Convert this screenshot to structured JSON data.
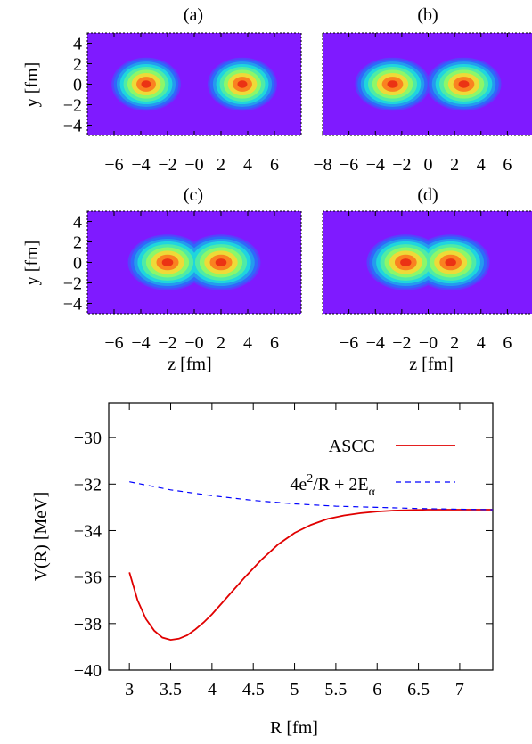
{
  "chart_data": [
    {
      "type": "heatmap",
      "panel_label": "(a)",
      "xlabel": "",
      "ylabel": "y [fm]",
      "xlim": [
        -8,
        8
      ],
      "ylim": [
        -5,
        5
      ],
      "x_ticks": [
        "−6",
        "−4",
        "−2",
        "−0",
        "2",
        "4",
        "6"
      ],
      "x_tick_values": [
        -6,
        -4,
        -2,
        0,
        2,
        4,
        6
      ],
      "y_ticks": [
        "4",
        "2",
        "0",
        "−2",
        "−4"
      ],
      "y_tick_values": [
        4,
        2,
        0,
        -2,
        -4
      ],
      "blobs": [
        {
          "z": -3.6,
          "y": 0,
          "sz": 1.05,
          "sy": 1.05
        },
        {
          "z": 3.6,
          "y": 0,
          "sz": 1.05,
          "sy": 1.05
        }
      ]
    },
    {
      "type": "heatmap",
      "panel_label": "(b)",
      "xlabel": "",
      "ylabel": "",
      "xlim": [
        -8,
        8
      ],
      "ylim": [
        -5,
        5
      ],
      "x_ticks": [
        "−8",
        "−6",
        "−4",
        "−2",
        "0",
        "2",
        "4",
        "6"
      ],
      "x_tick_values": [
        -8,
        -6,
        -4,
        -2,
        0,
        2,
        4,
        6
      ],
      "y_ticks": [],
      "y_tick_values": [],
      "blobs": [
        {
          "z": -2.7,
          "y": 0,
          "sz": 1.15,
          "sy": 1.05
        },
        {
          "z": 2.7,
          "y": 0,
          "sz": 1.15,
          "sy": 1.05
        }
      ]
    },
    {
      "type": "heatmap",
      "panel_label": "(c)",
      "xlabel": "z [fm]",
      "ylabel": "y [fm]",
      "xlim": [
        -8,
        8
      ],
      "ylim": [
        -5,
        5
      ],
      "x_ticks": [
        "−6",
        "−4",
        "−2",
        "−0",
        "2",
        "4",
        "6"
      ],
      "x_tick_values": [
        -6,
        -4,
        -2,
        0,
        2,
        4,
        6
      ],
      "y_ticks": [
        "4",
        "2",
        "0",
        "−2",
        "−4"
      ],
      "y_tick_values": [
        4,
        2,
        0,
        -2,
        -4
      ],
      "blobs": [
        {
          "z": -2.0,
          "y": 0,
          "sz": 1.2,
          "sy": 1.1
        },
        {
          "z": 2.0,
          "y": 0,
          "sz": 1.2,
          "sy": 1.1
        }
      ]
    },
    {
      "type": "heatmap",
      "panel_label": "(d)",
      "xlabel": "z [fm]",
      "ylabel": "",
      "xlim": [
        -8,
        8
      ],
      "ylim": [
        -5,
        5
      ],
      "x_ticks": [
        "−6",
        "−4",
        "−2",
        "−0",
        "2",
        "4",
        "6"
      ],
      "x_tick_values": [
        -6,
        -4,
        -2,
        0,
        2,
        4,
        6
      ],
      "y_ticks": [],
      "y_tick_values": [],
      "blobs": [
        {
          "z": -1.7,
          "y": 0,
          "sz": 1.2,
          "sy": 1.1
        },
        {
          "z": 1.7,
          "y": 0,
          "sz": 1.2,
          "sy": 1.1
        }
      ]
    },
    {
      "type": "line",
      "xlabel": "R [fm]",
      "ylabel": "V(R) [MeV]",
      "xlim": [
        2.75,
        7.4
      ],
      "ylim": [
        -40,
        -28.5
      ],
      "x_ticks": [
        "3",
        "3.5",
        "4",
        "4.5",
        "5",
        "5.5",
        "6",
        "6.5",
        "7"
      ],
      "x_tick_values": [
        3,
        3.5,
        4,
        4.5,
        5,
        5.5,
        6,
        6.5,
        7
      ],
      "y_ticks": [
        "−30",
        "−32",
        "−34",
        "−36",
        "−38",
        "−40"
      ],
      "y_tick_values": [
        -30,
        -32,
        -34,
        -36,
        -38,
        -40
      ],
      "legend_position": "top-right",
      "series": [
        {
          "name": "ASCC",
          "color": "#e00000",
          "dash": "solid",
          "x": [
            3.0,
            3.1,
            3.2,
            3.3,
            3.4,
            3.5,
            3.6,
            3.7,
            3.8,
            3.9,
            4.0,
            4.2,
            4.4,
            4.6,
            4.8,
            5.0,
            5.2,
            5.4,
            5.6,
            5.8,
            6.0,
            6.2,
            6.4,
            6.6,
            6.8,
            7.0,
            7.2,
            7.4
          ],
          "y": [
            -35.8,
            -37.0,
            -37.8,
            -38.3,
            -38.6,
            -38.7,
            -38.65,
            -38.5,
            -38.25,
            -37.95,
            -37.6,
            -36.8,
            -36.0,
            -35.25,
            -34.6,
            -34.1,
            -33.75,
            -33.5,
            -33.35,
            -33.25,
            -33.18,
            -33.14,
            -33.12,
            -33.1,
            -33.1,
            -33.1,
            -33.1,
            -33.1
          ]
        },
        {
          "name_parts": [
            "4e",
            "2",
            "/R + 2E",
            "α"
          ],
          "color": "#0000ff",
          "dash": "dashed",
          "x": [
            3.0,
            3.5,
            4.0,
            4.5,
            5.0,
            5.5,
            6.0,
            6.5,
            7.0,
            7.4
          ],
          "y": [
            -31.9,
            -32.25,
            -32.5,
            -32.7,
            -32.85,
            -32.95,
            -33.0,
            -33.05,
            -33.08,
            -33.1
          ]
        }
      ]
    }
  ]
}
